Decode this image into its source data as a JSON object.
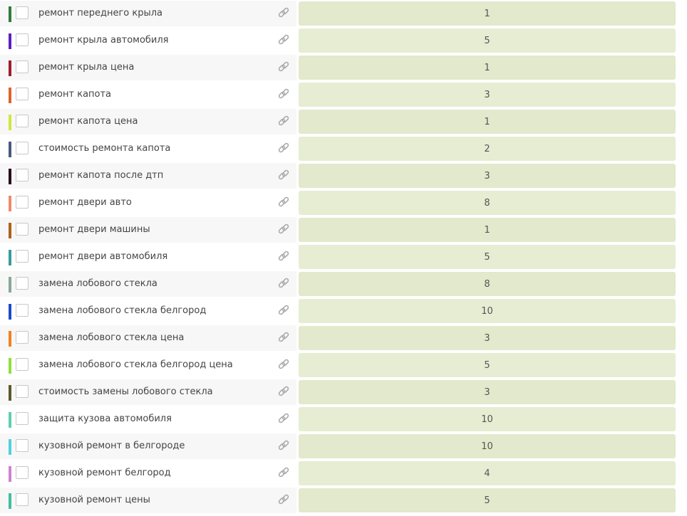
{
  "rows": [
    {
      "keyword": "ремонт переднего крыла",
      "color": "#2e7d3a",
      "value": 1
    },
    {
      "keyword": "ремонт крыла автомобиля",
      "color": "#5a1fc6",
      "value": 5
    },
    {
      "keyword": "ремонт крыла цена",
      "color": "#a01c2e",
      "value": 1
    },
    {
      "keyword": "ремонт капота",
      "color": "#e0622a",
      "value": 3
    },
    {
      "keyword": "ремонт капота цена",
      "color": "#d2e83a",
      "value": 1
    },
    {
      "keyword": "стоимость ремонта капота",
      "color": "#4a5a80",
      "value": 2
    },
    {
      "keyword": "ремонт капота после дтп",
      "color": "#2a0a1e",
      "value": 3
    },
    {
      "keyword": "ремонт двери авто",
      "color": "#f08a6a",
      "value": 8
    },
    {
      "keyword": "ремонт двери машины",
      "color": "#b0601a",
      "value": 1
    },
    {
      "keyword": "ремонт двери автомобиля",
      "color": "#3a9a9a",
      "value": 5
    },
    {
      "keyword": "замена лобового стекла",
      "color": "#8aa898",
      "value": 8
    },
    {
      "keyword": "замена лобового стекла белгород",
      "color": "#1a4ccc",
      "value": 10
    },
    {
      "keyword": "замена лобового стекла цена",
      "color": "#f08020",
      "value": 3
    },
    {
      "keyword": "замена лобового стекла белгород цена",
      "color": "#8ee03a",
      "value": 5
    },
    {
      "keyword": "стоимость замены лобового стекла",
      "color": "#5a5a2a",
      "value": 3
    },
    {
      "keyword": "защита кузова автомобиля",
      "color": "#5ad0b0",
      "value": 10
    },
    {
      "keyword": "кузовной ремонт в белгороде",
      "color": "#50d0e0",
      "value": 10
    },
    {
      "keyword": "кузовной ремонт белгород",
      "color": "#d080d0",
      "value": 4
    },
    {
      "keyword": "кузовной ремонт цены",
      "color": "#40c0a0",
      "value": 5
    }
  ]
}
